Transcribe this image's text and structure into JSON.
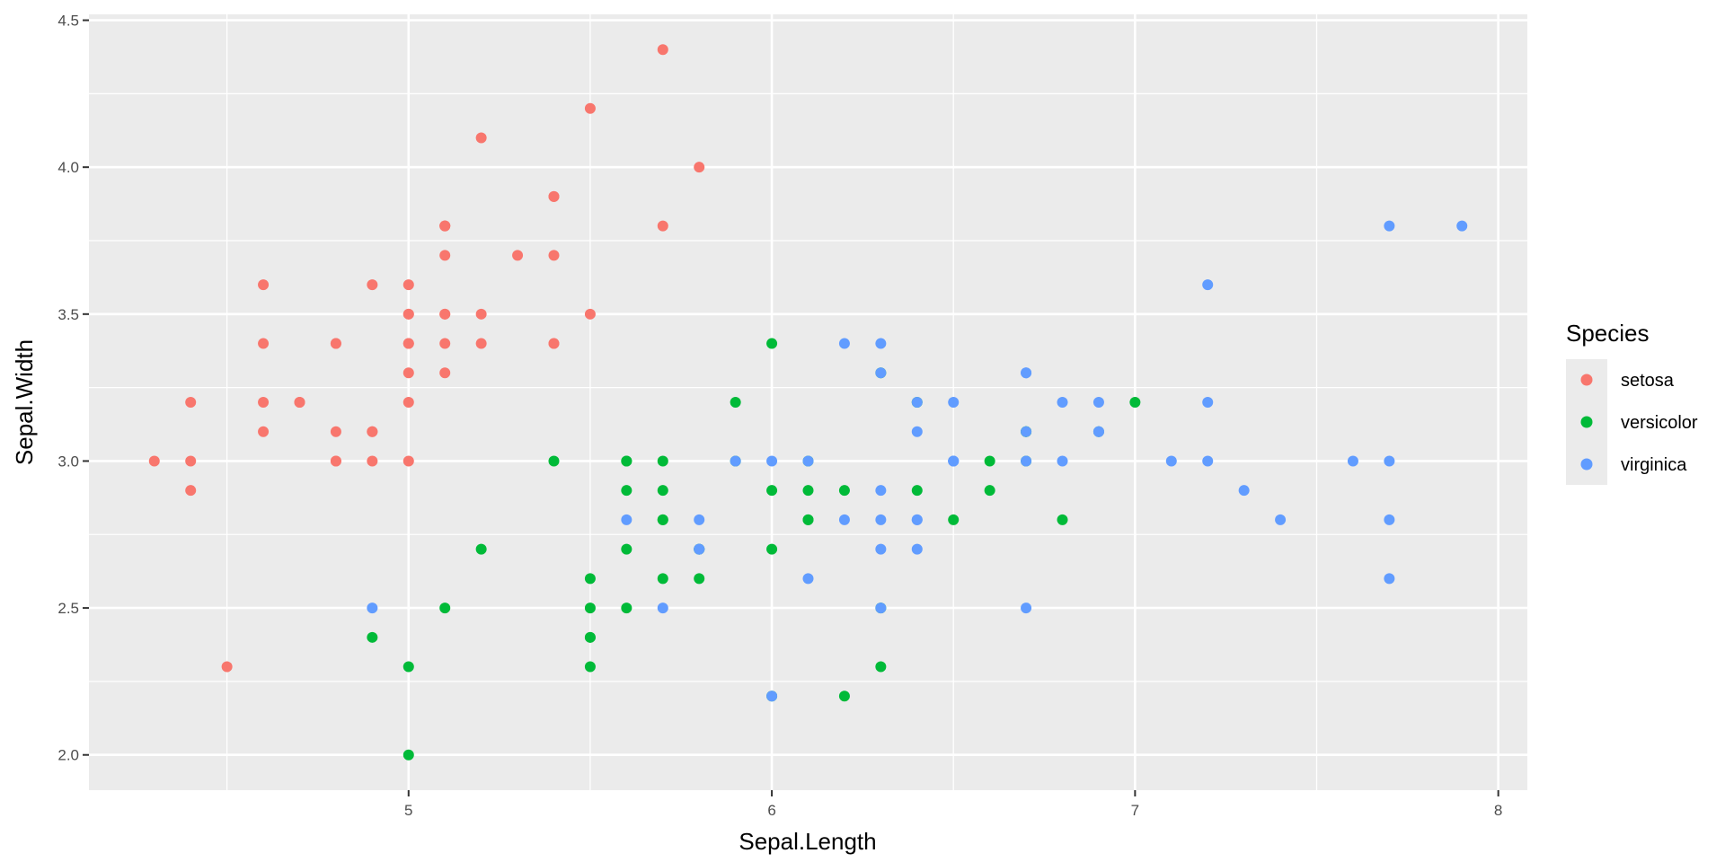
{
  "chart_data": {
    "type": "scatter",
    "title": "",
    "xlabel": "Sepal.Length",
    "ylabel": "Sepal.Width",
    "xlim": [
      4.12,
      8.08
    ],
    "ylim": [
      1.88,
      4.52
    ],
    "x_ticks": [
      5,
      6,
      7,
      8
    ],
    "y_ticks": [
      2.0,
      2.5,
      3.0,
      3.5,
      4.0,
      4.5
    ],
    "x_tick_labels": [
      "5",
      "6",
      "7",
      "8"
    ],
    "y_tick_labels": [
      "2.0",
      "2.5",
      "3.0",
      "3.5",
      "4.0",
      "4.5"
    ],
    "grid": true,
    "panel_background": "#ebebeb",
    "grid_color": "#ffffff",
    "legend": {
      "title": "Species",
      "placement": "right",
      "background": "#ebebeb"
    },
    "series": [
      {
        "name": "setosa",
        "color": "#F8766D",
        "points": [
          [
            5.1,
            3.5
          ],
          [
            4.9,
            3.0
          ],
          [
            4.7,
            3.2
          ],
          [
            4.6,
            3.1
          ],
          [
            5.0,
            3.6
          ],
          [
            5.4,
            3.9
          ],
          [
            4.6,
            3.4
          ],
          [
            5.0,
            3.4
          ],
          [
            4.4,
            2.9
          ],
          [
            4.9,
            3.1
          ],
          [
            5.4,
            3.7
          ],
          [
            4.8,
            3.4
          ],
          [
            4.8,
            3.0
          ],
          [
            4.3,
            3.0
          ],
          [
            5.8,
            4.0
          ],
          [
            5.7,
            4.4
          ],
          [
            5.4,
            3.9
          ],
          [
            5.1,
            3.5
          ],
          [
            5.7,
            3.8
          ],
          [
            5.1,
            3.8
          ],
          [
            5.4,
            3.4
          ],
          [
            5.1,
            3.7
          ],
          [
            4.6,
            3.6
          ],
          [
            5.1,
            3.3
          ],
          [
            4.8,
            3.4
          ],
          [
            5.0,
            3.0
          ],
          [
            5.0,
            3.4
          ],
          [
            5.2,
            3.5
          ],
          [
            5.2,
            3.4
          ],
          [
            4.7,
            3.2
          ],
          [
            4.8,
            3.1
          ],
          [
            5.4,
            3.4
          ],
          [
            5.2,
            4.1
          ],
          [
            5.5,
            4.2
          ],
          [
            4.9,
            3.1
          ],
          [
            5.0,
            3.2
          ],
          [
            5.5,
            3.5
          ],
          [
            4.9,
            3.6
          ],
          [
            4.4,
            3.0
          ],
          [
            5.1,
            3.4
          ],
          [
            5.0,
            3.5
          ],
          [
            4.5,
            2.3
          ],
          [
            4.4,
            3.2
          ],
          [
            5.0,
            3.5
          ],
          [
            5.1,
            3.8
          ],
          [
            4.8,
            3.0
          ],
          [
            5.1,
            3.8
          ],
          [
            4.6,
            3.2
          ],
          [
            5.3,
            3.7
          ],
          [
            5.0,
            3.3
          ]
        ]
      },
      {
        "name": "versicolor",
        "color": "#00BA38",
        "points": [
          [
            7.0,
            3.2
          ],
          [
            6.4,
            3.2
          ],
          [
            6.9,
            3.1
          ],
          [
            5.5,
            2.3
          ],
          [
            6.5,
            2.8
          ],
          [
            5.7,
            2.8
          ],
          [
            6.3,
            3.3
          ],
          [
            4.9,
            2.4
          ],
          [
            6.6,
            2.9
          ],
          [
            5.2,
            2.7
          ],
          [
            5.0,
            2.0
          ],
          [
            5.9,
            3.0
          ],
          [
            6.0,
            2.2
          ],
          [
            6.1,
            2.9
          ],
          [
            5.6,
            2.9
          ],
          [
            6.7,
            3.1
          ],
          [
            5.6,
            3.0
          ],
          [
            5.8,
            2.7
          ],
          [
            6.2,
            2.2
          ],
          [
            5.6,
            2.5
          ],
          [
            5.9,
            3.2
          ],
          [
            6.1,
            2.8
          ],
          [
            6.3,
            2.5
          ],
          [
            6.1,
            2.8
          ],
          [
            6.4,
            2.9
          ],
          [
            6.6,
            3.0
          ],
          [
            6.8,
            2.8
          ],
          [
            6.7,
            3.0
          ],
          [
            6.0,
            2.9
          ],
          [
            5.7,
            2.6
          ],
          [
            5.5,
            2.4
          ],
          [
            5.5,
            2.4
          ],
          [
            5.8,
            2.7
          ],
          [
            6.0,
            2.7
          ],
          [
            5.4,
            3.0
          ],
          [
            6.0,
            3.4
          ],
          [
            6.7,
            3.1
          ],
          [
            6.3,
            2.3
          ],
          [
            5.6,
            3.0
          ],
          [
            5.5,
            2.5
          ],
          [
            5.5,
            2.6
          ],
          [
            6.1,
            3.0
          ],
          [
            5.8,
            2.6
          ],
          [
            5.0,
            2.3
          ],
          [
            5.6,
            2.7
          ],
          [
            5.7,
            3.0
          ],
          [
            5.7,
            2.9
          ],
          [
            6.2,
            2.9
          ],
          [
            5.1,
            2.5
          ],
          [
            5.7,
            2.8
          ]
        ]
      },
      {
        "name": "virginica",
        "color": "#619CFF",
        "points": [
          [
            6.3,
            3.3
          ],
          [
            5.8,
            2.7
          ],
          [
            7.1,
            3.0
          ],
          [
            6.3,
            2.9
          ],
          [
            6.5,
            3.0
          ],
          [
            7.6,
            3.0
          ],
          [
            4.9,
            2.5
          ],
          [
            7.3,
            2.9
          ],
          [
            6.7,
            2.5
          ],
          [
            7.2,
            3.6
          ],
          [
            6.5,
            3.2
          ],
          [
            6.4,
            2.7
          ],
          [
            6.8,
            3.0
          ],
          [
            5.7,
            2.5
          ],
          [
            5.8,
            2.8
          ],
          [
            6.4,
            3.2
          ],
          [
            6.5,
            3.0
          ],
          [
            7.7,
            3.8
          ],
          [
            7.7,
            2.6
          ],
          [
            6.0,
            2.2
          ],
          [
            6.9,
            3.2
          ],
          [
            5.6,
            2.8
          ],
          [
            7.7,
            2.8
          ],
          [
            6.3,
            2.7
          ],
          [
            6.7,
            3.3
          ],
          [
            7.2,
            3.2
          ],
          [
            6.2,
            2.8
          ],
          [
            6.1,
            3.0
          ],
          [
            6.4,
            2.8
          ],
          [
            7.2,
            3.0
          ],
          [
            7.4,
            2.8
          ],
          [
            7.9,
            3.8
          ],
          [
            6.4,
            2.8
          ],
          [
            6.3,
            2.8
          ],
          [
            6.1,
            2.6
          ],
          [
            7.7,
            3.0
          ],
          [
            6.3,
            3.4
          ],
          [
            6.4,
            3.1
          ],
          [
            6.0,
            3.0
          ],
          [
            6.9,
            3.1
          ],
          [
            6.7,
            3.1
          ],
          [
            6.9,
            3.1
          ],
          [
            5.8,
            2.7
          ],
          [
            6.8,
            3.2
          ],
          [
            6.7,
            3.3
          ],
          [
            6.7,
            3.0
          ],
          [
            6.3,
            2.5
          ],
          [
            6.5,
            3.0
          ],
          [
            6.2,
            3.4
          ],
          [
            5.9,
            3.0
          ]
        ]
      }
    ]
  }
}
